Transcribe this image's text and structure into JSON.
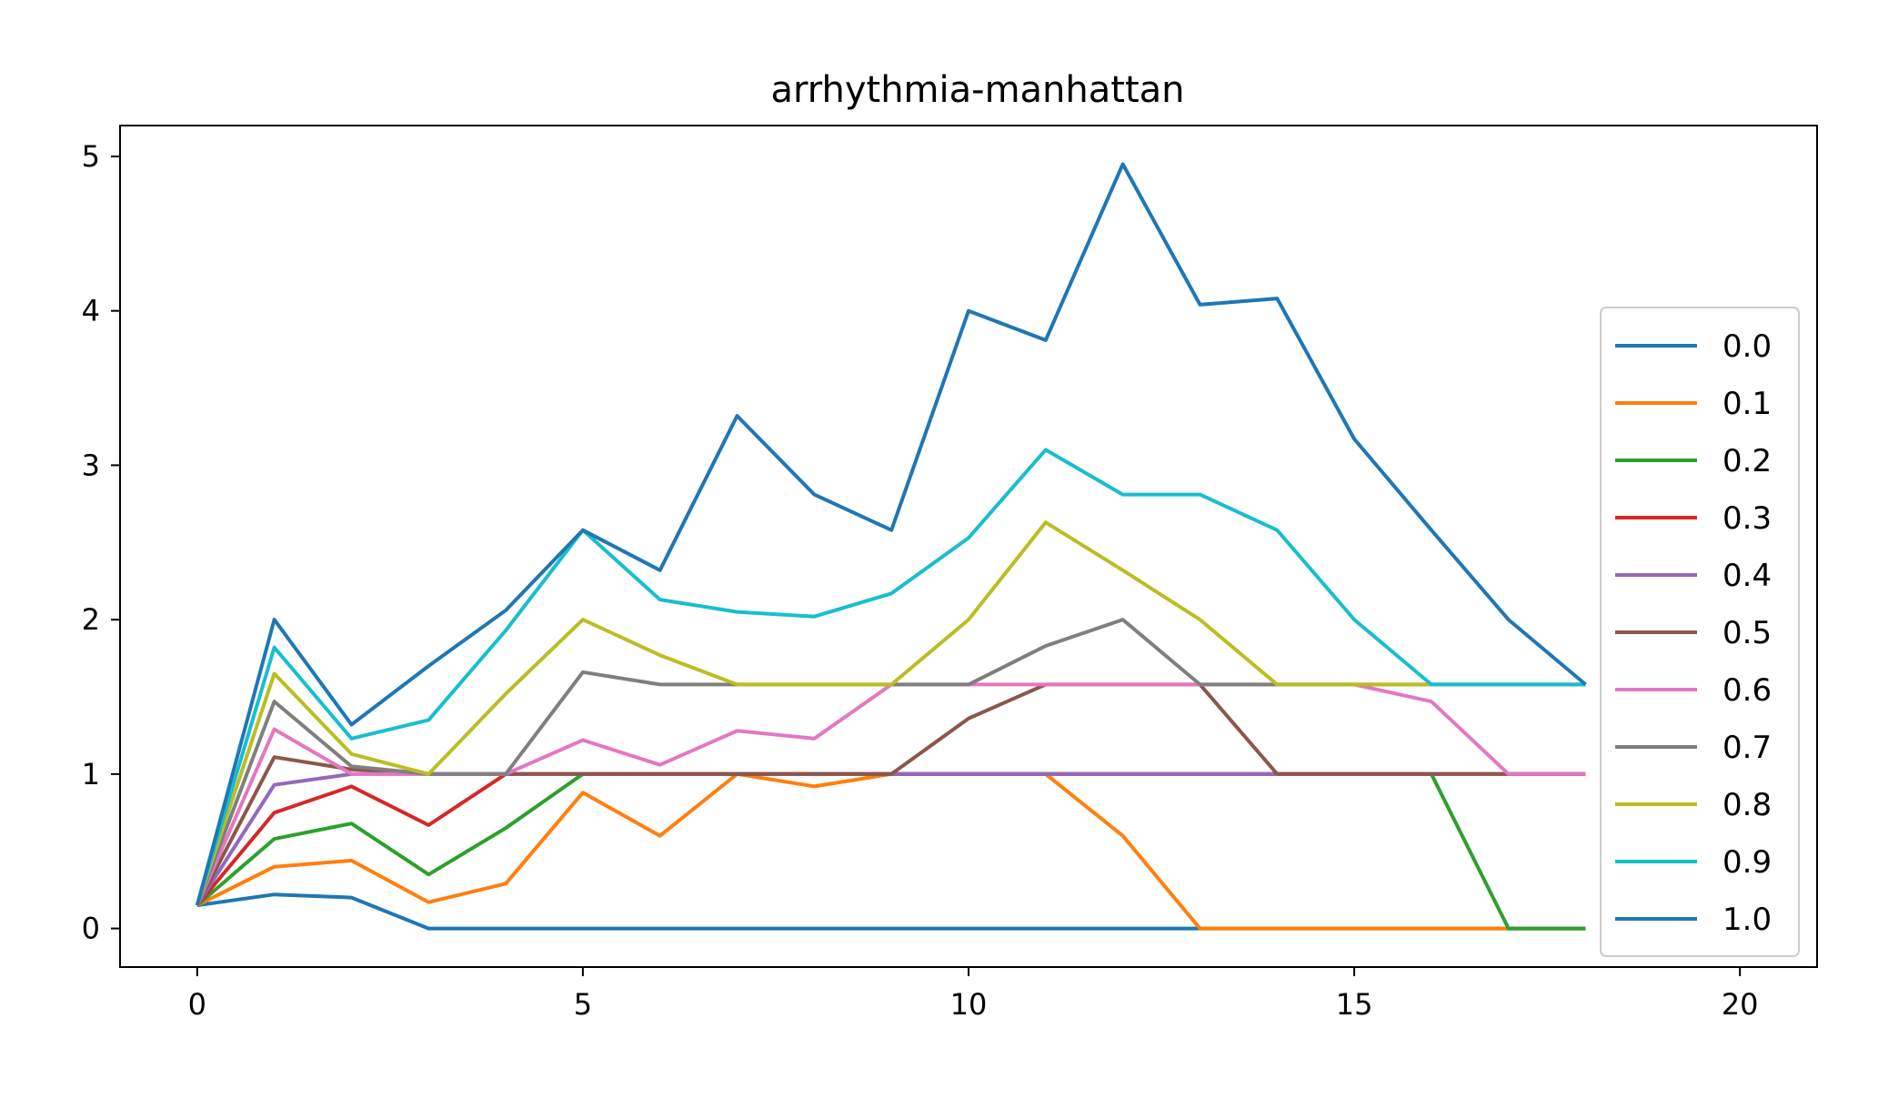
{
  "chart_data": {
    "type": "line",
    "title": "arrhythmia-manhattan",
    "xlabel": "",
    "ylabel": "",
    "xlim": [
      -1,
      21
    ],
    "ylim": [
      -0.25,
      5.2
    ],
    "xticks": [
      0,
      5,
      10,
      15,
      20
    ],
    "yticks": [
      0,
      1,
      2,
      3,
      4,
      5
    ],
    "grid": false,
    "legend_position": "right",
    "x": [
      0,
      1,
      2,
      3,
      4,
      5,
      6,
      7,
      8,
      9,
      10,
      11,
      12,
      13,
      14,
      15,
      16,
      17,
      18
    ],
    "series": [
      {
        "name": "0.0",
        "color": "#1f77b4",
        "values": [
          0.15,
          0.22,
          0.2,
          0,
          0,
          0,
          0,
          0,
          0,
          0,
          0,
          0,
          0,
          0,
          0,
          0,
          0,
          0,
          0
        ]
      },
      {
        "name": "0.1",
        "color": "#ff7f0e",
        "values": [
          0.15,
          0.4,
          0.44,
          0.17,
          0.29,
          0.88,
          0.6,
          1.0,
          0.92,
          1.0,
          1.0,
          1.0,
          0.6,
          0,
          0,
          0,
          0,
          0,
          0
        ]
      },
      {
        "name": "0.2",
        "color": "#2ca02c",
        "values": [
          0.15,
          0.58,
          0.68,
          0.35,
          0.65,
          1.0,
          1.0,
          1.0,
          1.0,
          1.0,
          1.0,
          1.0,
          1.0,
          1.0,
          1.0,
          1.0,
          1.0,
          0,
          0
        ]
      },
      {
        "name": "0.3",
        "color": "#d62728",
        "values": [
          0.15,
          0.75,
          0.92,
          0.67,
          1.0,
          1.0,
          1.0,
          1.0,
          1.0,
          1.0,
          1.0,
          1.0,
          1.0,
          1.0,
          1.0,
          1.0,
          1.0,
          1.0,
          1.0
        ]
      },
      {
        "name": "0.4",
        "color": "#9467bd",
        "values": [
          0.15,
          0.93,
          1.0,
          1.0,
          1.0,
          1.0,
          1.0,
          1.0,
          1.0,
          1.0,
          1.0,
          1.0,
          1.0,
          1.0,
          1.0,
          1.0,
          1.0,
          1.0,
          1.0
        ]
      },
      {
        "name": "0.5",
        "color": "#8c564b",
        "values": [
          0.15,
          1.11,
          1.03,
          1.0,
          1.0,
          1.0,
          1.0,
          1.0,
          1.0,
          1.0,
          1.36,
          1.58,
          1.58,
          1.58,
          1.0,
          1.0,
          1.0,
          1.0,
          1.0
        ]
      },
      {
        "name": "0.6",
        "color": "#e377c2",
        "values": [
          0.15,
          1.29,
          1.0,
          1.0,
          1.0,
          1.22,
          1.06,
          1.28,
          1.23,
          1.58,
          1.58,
          1.58,
          1.58,
          1.58,
          1.58,
          1.58,
          1.47,
          1.0,
          1.0
        ]
      },
      {
        "name": "0.7",
        "color": "#7f7f7f",
        "values": [
          0.15,
          1.47,
          1.05,
          1.0,
          1.0,
          1.66,
          1.58,
          1.58,
          1.58,
          1.58,
          1.58,
          1.83,
          2.0,
          1.58,
          1.58,
          1.58,
          1.58,
          1.58,
          1.58
        ]
      },
      {
        "name": "0.8",
        "color": "#bcbd22",
        "values": [
          0.15,
          1.65,
          1.13,
          1.0,
          1.52,
          2.0,
          1.77,
          1.58,
          1.58,
          1.58,
          2.0,
          2.63,
          2.32,
          2.0,
          1.58,
          1.58,
          1.58,
          1.58,
          1.58
        ]
      },
      {
        "name": "0.9",
        "color": "#17becf",
        "values": [
          0.15,
          1.82,
          1.23,
          1.35,
          1.93,
          2.58,
          2.13,
          2.05,
          2.02,
          2.17,
          2.53,
          3.1,
          2.81,
          2.81,
          2.58,
          2.0,
          1.58,
          1.58,
          1.58
        ]
      },
      {
        "name": "1.0",
        "color": "#1f77b4",
        "values": [
          0.15,
          2.0,
          1.32,
          1.7,
          2.06,
          2.58,
          2.32,
          3.32,
          2.81,
          2.58,
          4.0,
          3.81,
          4.95,
          4.04,
          4.08,
          3.17,
          2.58,
          2.0,
          1.58
        ]
      }
    ]
  }
}
